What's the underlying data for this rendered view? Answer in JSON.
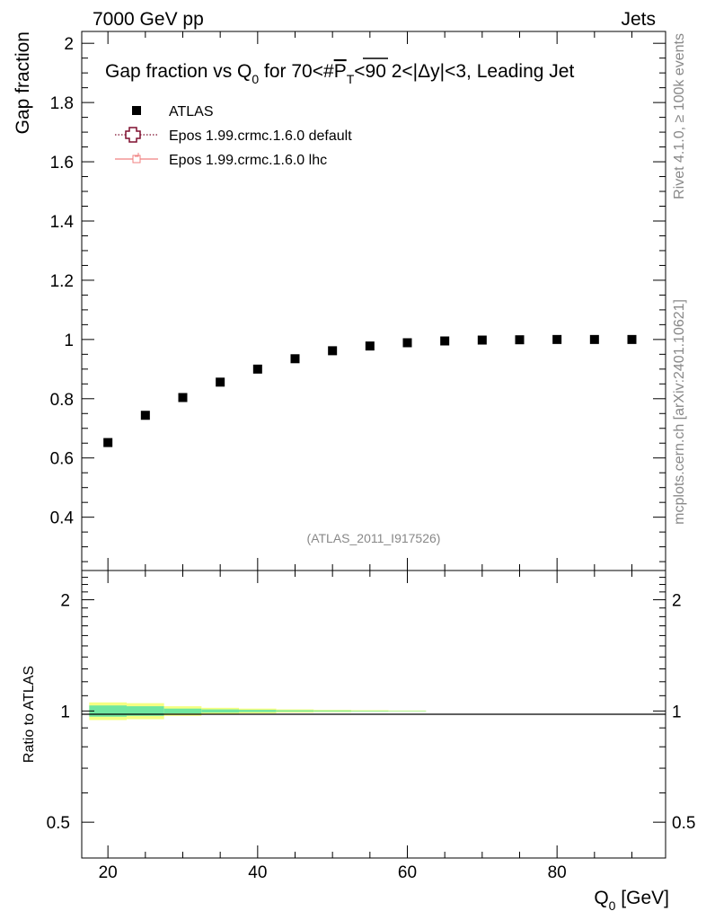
{
  "header": {
    "energy_label": "7000 GeV pp",
    "category_label": "Jets"
  },
  "side_labels": {
    "rivet": "Rivet 4.1.0, ≥ 100k events",
    "source": "mcplots.cern.ch [arXiv:2401.10621]"
  },
  "chart_data": {
    "type": "scatter",
    "title_parts": {
      "before_sub": "Gap fraction vs Q",
      "sub": "0",
      "mid": " for 70<#",
      "overline": "P",
      "sub2": "T",
      "after": "<90  2<|Δy|<3, Leading Jet"
    },
    "xlabel": "Q",
    "xlabel_sub": "0",
    "xlabel_unit": " [GeV]",
    "ylabel": "Gap fraction",
    "ratio_ylabel": "Ratio to ATLAS",
    "analysis_id": "(ATLAS_2011_I917526)",
    "xlim": [
      16.5,
      94.5
    ],
    "ylim": [
      0.22,
      2.04
    ],
    "ratio_ylim": [
      0.4,
      2.4
    ],
    "x_ticks": [
      20,
      40,
      60,
      80
    ],
    "y_ticks": [
      0.4,
      0.6,
      0.8,
      1,
      1.2,
      1.4,
      1.6,
      1.8,
      2
    ],
    "ratio_ticks": [
      0.5,
      1,
      2
    ],
    "ratio_tick_labels": [
      "0.5",
      "1",
      "2"
    ],
    "legend": [
      {
        "name": "ATLAS",
        "style": "marker"
      },
      {
        "name": "Epos 1.99.crmc.1.6.0 default",
        "style": "dotted-cross"
      },
      {
        "name": "Epos 1.99.crmc.1.6.0 lhc",
        "style": "line-cross"
      }
    ],
    "series": [
      {
        "name": "ATLAS",
        "x": [
          20,
          25,
          30,
          35,
          40,
          45,
          50,
          55,
          60,
          65,
          70,
          75,
          80,
          85,
          90
        ],
        "values": [
          0.652,
          0.744,
          0.804,
          0.856,
          0.9,
          0.935,
          0.962,
          0.978,
          0.989,
          0.995,
          0.998,
          0.999,
          1.0,
          1.0,
          1.0
        ]
      }
    ],
    "ratio_band": {
      "bins": [
        [
          17.5,
          22.5
        ],
        [
          22.5,
          27.5
        ],
        [
          27.5,
          32.5
        ],
        [
          32.5,
          37.5
        ],
        [
          37.5,
          42.5
        ],
        [
          42.5,
          47.5
        ],
        [
          47.5,
          52.5
        ],
        [
          52.5,
          57.5
        ],
        [
          57.5,
          62.5
        ]
      ],
      "outer": [
        0.055,
        0.05,
        0.03,
        0.02,
        0.015,
        0.01,
        0.007,
        0.005,
        0.003
      ],
      "inner": [
        0.035,
        0.03,
        0.015,
        0.01,
        0.007,
        0.004,
        0.003,
        0.002,
        0.001
      ],
      "outer_color": "#f5ff82",
      "inner_color": "#6fe6a0"
    },
    "colors": {
      "data": "#000000",
      "epos_default": "#7f0f2f",
      "epos_lhc": "#f08080",
      "meta_text": "#888888"
    }
  }
}
